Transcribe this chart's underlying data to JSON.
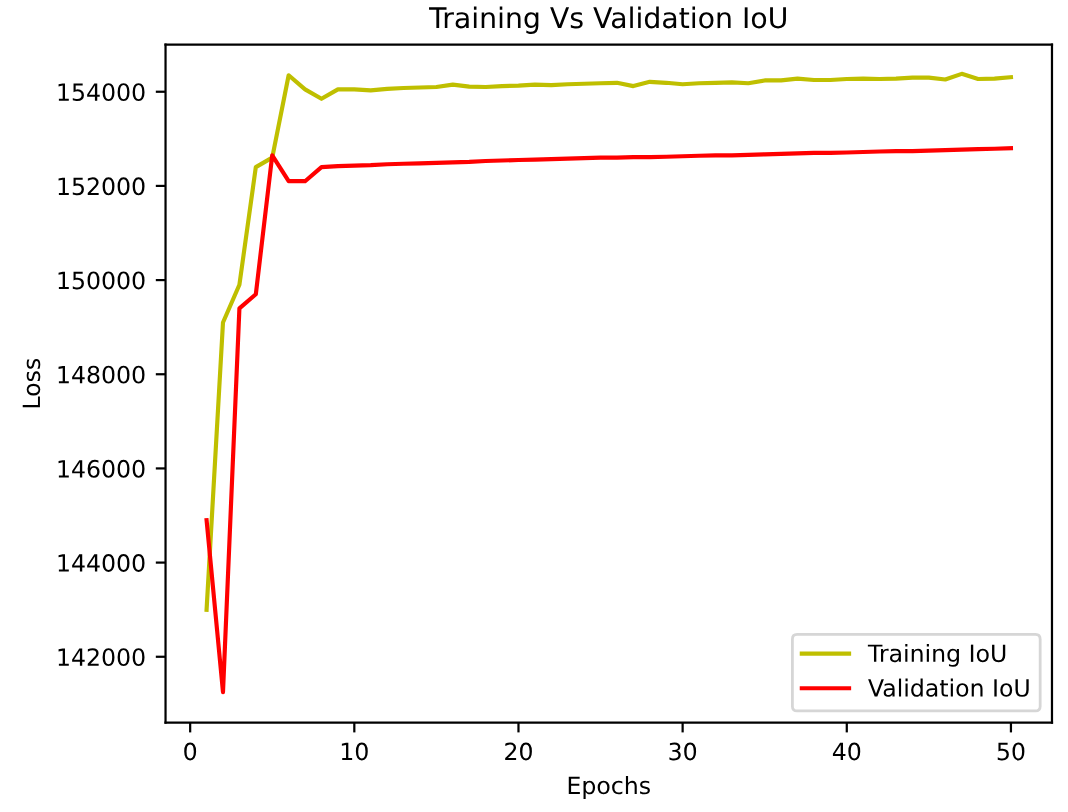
{
  "chart_data": {
    "type": "line",
    "title": "Training Vs Validation IoU",
    "xlabel": "Epochs",
    "ylabel": "Loss",
    "x": [
      1,
      2,
      3,
      4,
      5,
      6,
      7,
      8,
      9,
      10,
      11,
      12,
      13,
      14,
      15,
      16,
      17,
      18,
      19,
      20,
      21,
      22,
      23,
      24,
      25,
      26,
      27,
      28,
      29,
      30,
      31,
      32,
      33,
      34,
      35,
      36,
      37,
      38,
      39,
      40,
      41,
      42,
      43,
      44,
      45,
      46,
      47,
      48,
      49,
      50
    ],
    "series": [
      {
        "name": "Training IoU",
        "color": "#bfbf00",
        "values": [
          143000,
          149100,
          149900,
          152400,
          152600,
          154350,
          154050,
          153850,
          154050,
          154050,
          154030,
          154060,
          154080,
          154090,
          154100,
          154150,
          154110,
          154100,
          154120,
          154130,
          154150,
          154140,
          154160,
          154170,
          154180,
          154190,
          154120,
          154210,
          154190,
          154160,
          154180,
          154190,
          154200,
          154180,
          154240,
          154240,
          154280,
          154250,
          154250,
          154270,
          154280,
          154270,
          154280,
          154300,
          154300,
          154260,
          154380,
          154270,
          154280,
          154310
        ]
      },
      {
        "name": "Validation IoU",
        "color": "#ff0000",
        "values": [
          144900,
          141250,
          149400,
          149700,
          152650,
          152100,
          152100,
          152400,
          152420,
          152430,
          152440,
          152460,
          152470,
          152480,
          152490,
          152500,
          152510,
          152530,
          152540,
          152550,
          152560,
          152570,
          152580,
          152590,
          152600,
          152600,
          152610,
          152610,
          152620,
          152630,
          152640,
          152650,
          152650,
          152660,
          152670,
          152680,
          152690,
          152700,
          152700,
          152710,
          152720,
          152730,
          152740,
          152740,
          152750,
          152760,
          152770,
          152780,
          152790,
          152800
        ]
      }
    ],
    "xlim": [
      -1.5,
      52.5
    ],
    "xticks": [
      0,
      10,
      20,
      30,
      40,
      50
    ],
    "ylim": [
      140600,
      155000
    ],
    "yticks": [
      142000,
      144000,
      146000,
      148000,
      150000,
      152000,
      154000
    ],
    "legend": "lower right",
    "grid": false,
    "marker": "none",
    "line_style": "solid"
  }
}
